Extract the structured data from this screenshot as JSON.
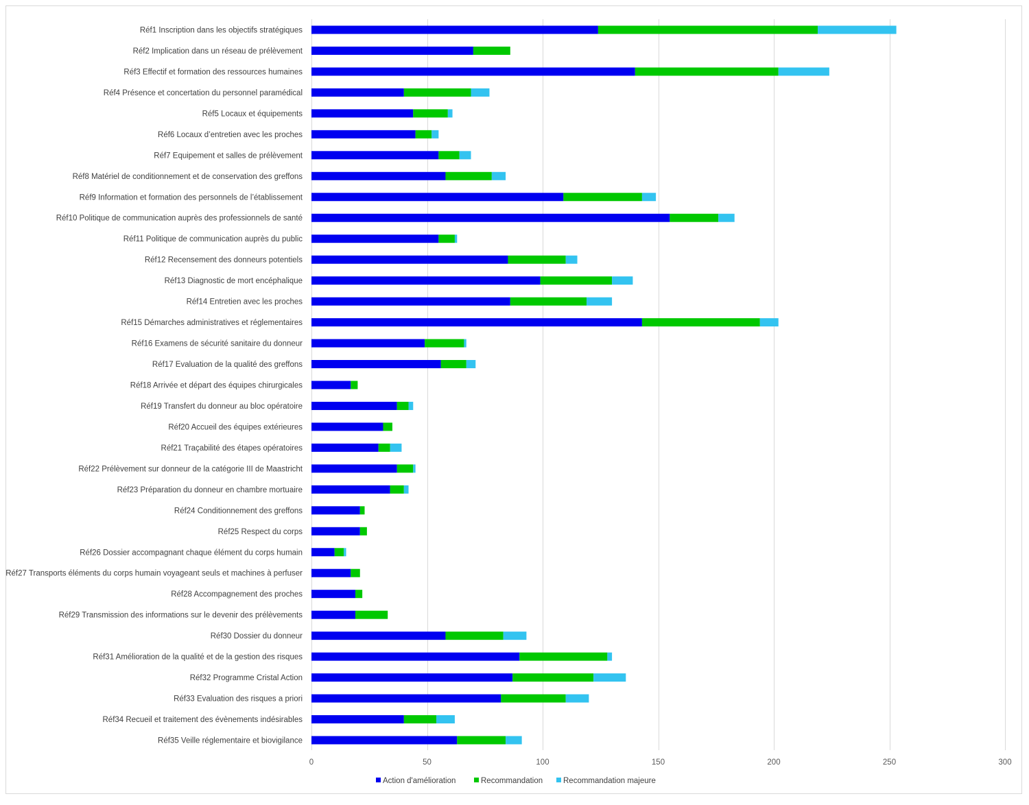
{
  "chart_data": {
    "type": "bar",
    "orientation": "horizontal",
    "stacked": true,
    "title": "",
    "xlabel": "",
    "ylabel": "",
    "xlim": [
      0,
      300
    ],
    "xticks": [
      0,
      50,
      100,
      150,
      200,
      250,
      300
    ],
    "grid": "vertical",
    "legend_position": "bottom",
    "categories": [
      "Réf1 Inscription dans les objectifs stratégiques",
      "Réf2 Implication dans un réseau de prélèvement",
      "Réf3 Effectif et formation des ressources humaines",
      "Réf4 Présence et concertation du personnel paramédical",
      "Réf5 Locaux et équipements",
      "Réf6 Locaux d’entretien avec les proches",
      "Réf7 Equipement et salles de prélèvement",
      "Réf8 Matériel de conditionnement et de conservation des greffons",
      "Réf9 Information et formation des personnels de l’établissement",
      "Réf10 Politique de communication auprès des professionnels de santé",
      "Réf11 Politique de communication auprès du public",
      "Réf12 Recensement des donneurs potentiels",
      "Réf13 Diagnostic de mort encéphalique",
      "Réf14 Entretien avec les proches",
      "Réf15 Démarches administratives et réglementaires",
      "Réf16 Examens de sécurité sanitaire du donneur",
      "Réf17 Evaluation de la qualité des greffons",
      "Réf18 Arrivée et départ des équipes chirurgicales",
      "Réf19 Transfert du donneur au bloc opératoire",
      "Réf20 Accueil des équipes extérieures",
      "Réf21 Traçabilité des étapes opératoires",
      "Réf22 Prélèvement sur donneur de la catégorie III de Maastricht",
      "Réf23 Préparation du donneur en chambre mortuaire",
      "Réf24 Conditionnement des greffons",
      "Réf25 Respect du corps",
      "Réf26 Dossier accompagnant chaque élément du corps humain",
      "Réf27 Transports éléments du corps humain voyageant seuls et machines à perfuser",
      "Réf28 Accompagnement des proches",
      "Réf29 Transmission des informations sur le devenir des prélèvements",
      "Réf30 Dossier du donneur",
      "Réf31 Amélioration de la qualité et de la gestion des risques",
      "Réf32 Programme Cristal Action",
      "Réf33 Evaluation des risques a priori",
      "Réf34 Recueil et traitement des évènements indésirables",
      "Réf35 Veille réglementaire et biovigilance"
    ],
    "series": [
      {
        "name": "Action d'amélioration",
        "color": "#0000f0",
        "values": [
          124,
          70,
          140,
          40,
          44,
          45,
          55,
          58,
          109,
          155,
          55,
          85,
          99,
          86,
          143,
          49,
          56,
          17,
          37,
          31,
          29,
          37,
          34,
          21,
          21,
          10,
          17,
          19,
          19,
          58,
          90,
          87,
          82,
          40,
          63
        ]
      },
      {
        "name": "Recommandation",
        "color": "#00c800",
        "values": [
          95,
          16,
          62,
          29,
          15,
          7,
          9,
          20,
          34,
          21,
          7,
          25,
          31,
          33,
          51,
          17,
          11,
          3,
          5,
          4,
          5,
          7,
          6,
          2,
          3,
          4,
          4,
          3,
          14,
          25,
          38,
          35,
          28,
          14,
          21
        ]
      },
      {
        "name": "Recommandation majeure",
        "color": "#33c3f0",
        "values": [
          34,
          0,
          22,
          8,
          2,
          3,
          5,
          6,
          6,
          7,
          1,
          5,
          9,
          11,
          8,
          1,
          4,
          0,
          2,
          0,
          5,
          1,
          2,
          0,
          0,
          1,
          0,
          0,
          0,
          10,
          2,
          14,
          10,
          8,
          7
        ]
      }
    ]
  }
}
